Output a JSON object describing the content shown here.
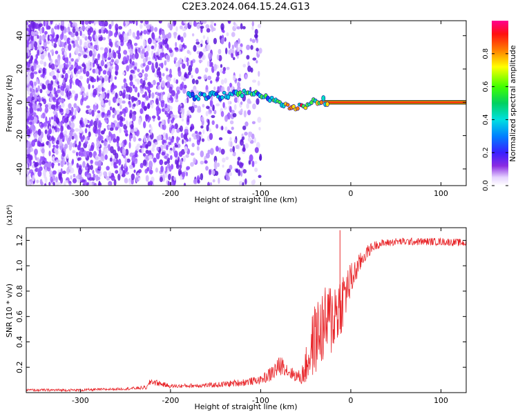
{
  "title": "C2E3.2024.064.15.24.G13",
  "chart_data": [
    {
      "type": "heatmap",
      "xlabel": "Height of straight line (km)",
      "ylabel": "Frequency (Hz)",
      "xlim": [
        -360,
        128
      ],
      "ylim": [
        -50,
        49
      ],
      "x_ticks": [
        -300,
        -200,
        -100,
        0,
        100
      ],
      "y_ticks": [
        -40,
        -20,
        0,
        20,
        40
      ],
      "colorbar": {
        "label": "Normalized spectral amplitude",
        "range": [
          0,
          1
        ],
        "ticks": [
          0.0,
          0.2,
          0.4,
          0.6,
          0.8
        ],
        "colormap": "white-purple-blue-cyan-green-yellow-red-magenta"
      },
      "features": {
        "noise_region_x": [
          -360,
          -100
        ],
        "noise_dense_x": [
          -360,
          -180
        ],
        "carrier_track": {
          "x": [
            -180,
            -150,
            -120,
            -100,
            -80,
            -65,
            -55,
            -45,
            -35,
            -25,
            -15,
            -5,
            10,
            40,
            128
          ],
          "y": [
            4,
            4,
            5,
            4,
            1,
            -4,
            -2,
            -1,
            1,
            0,
            0,
            0,
            0,
            0,
            0
          ]
        },
        "carrier_peak_amplitude_x": [
          -30,
          128
        ]
      }
    },
    {
      "type": "line",
      "xlabel": "Height of straight line (km)",
      "ylabel": "SNR (10 * v/v)",
      "y_multiplier": "(x10⁴)",
      "xlim": [
        -360,
        128
      ],
      "ylim": [
        0,
        1.3
      ],
      "x_ticks": [
        -300,
        -200,
        -100,
        0,
        100
      ],
      "y_ticks": [
        0.2,
        0.4,
        0.6,
        0.8,
        1.0,
        1.2
      ],
      "series": [
        {
          "color": "#e8262a",
          "x": [
            -360,
            -300,
            -250,
            -226,
            -222,
            -200,
            -150,
            -120,
            -100,
            -90,
            -80,
            -75,
            -70,
            -65,
            -60,
            -55,
            -50,
            -45,
            -40,
            -35,
            -30,
            -25,
            -20,
            -15,
            -10,
            -5,
            0,
            5,
            10,
            15,
            20,
            25,
            30,
            40,
            50,
            70,
            100,
            128
          ],
          "y": [
            0.02,
            0.02,
            0.03,
            0.04,
            0.09,
            0.05,
            0.06,
            0.08,
            0.1,
            0.14,
            0.2,
            0.22,
            0.17,
            0.15,
            0.13,
            0.12,
            0.2,
            0.32,
            0.42,
            0.48,
            0.52,
            0.56,
            0.6,
            0.66,
            0.72,
            0.8,
            0.88,
            0.95,
            1.02,
            1.08,
            1.12,
            1.15,
            1.17,
            1.18,
            1.19,
            1.19,
            1.19,
            1.18
          ],
          "spread": [
            0.01,
            0.01,
            0.01,
            0.015,
            0.03,
            0.015,
            0.02,
            0.03,
            0.03,
            0.06,
            0.08,
            0.07,
            0.06,
            0.05,
            0.05,
            0.06,
            0.14,
            0.24,
            0.28,
            0.3,
            0.3,
            0.3,
            0.32,
            0.3,
            0.25,
            0.2,
            0.15,
            0.1,
            0.08,
            0.06,
            0.05,
            0.04,
            0.035,
            0.03,
            0.03,
            0.03,
            0.03,
            0.03
          ],
          "peak_spike": [
            -12,
            1.28
          ]
        }
      ]
    }
  ]
}
